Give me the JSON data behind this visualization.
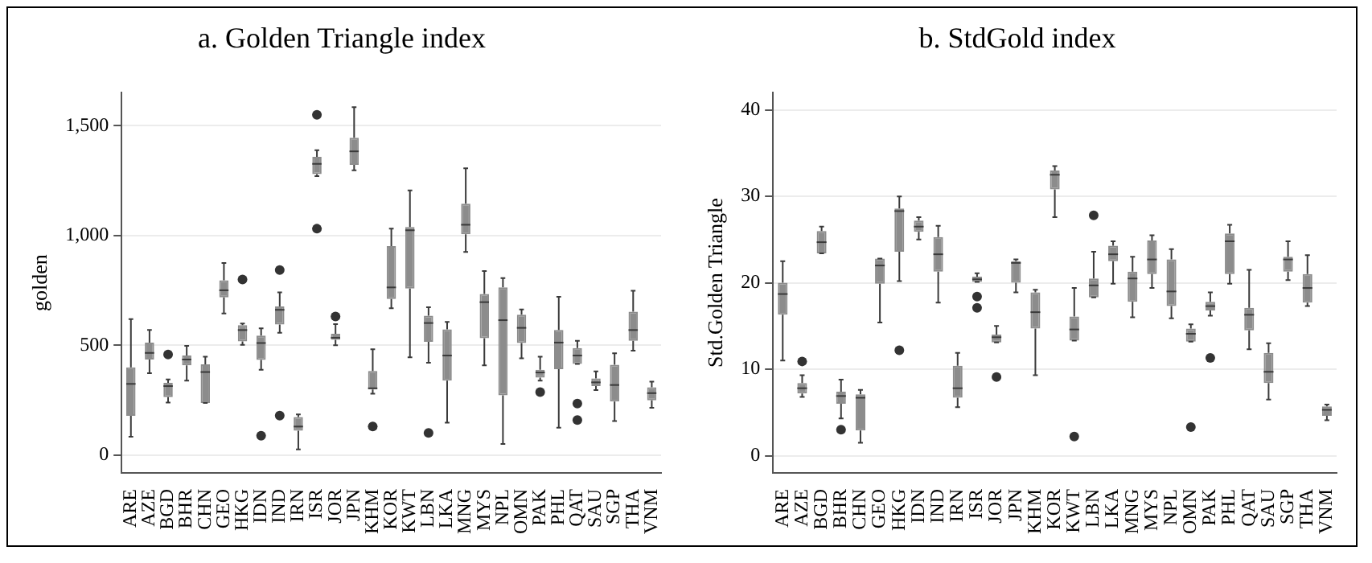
{
  "chart_data": [
    {
      "type": "box",
      "title": "a. Golden Triangle index",
      "ylabel": "golden",
      "color": "#8c8c8c",
      "grid": "y",
      "categories": [
        "ARE",
        "AZE",
        "BGD",
        "BHR",
        "CHN",
        "GEO",
        "HKG",
        "IDN",
        "IND",
        "IRN",
        "ISR",
        "JOR",
        "JPN",
        "KHM",
        "KOR",
        "KWT",
        "LBN",
        "LKA",
        "MNG",
        "MYS",
        "NPL",
        "OMN",
        "PAK",
        "PHL",
        "QAT",
        "SAU",
        "SGP",
        "THA",
        "VNM"
      ],
      "ylim": [
        -80,
        1650
      ],
      "yticks": [
        0,
        500,
        {
          "value": 1000,
          "label": "1,000"
        },
        {
          "value": 1500,
          "label": "1,500"
        }
      ],
      "boxes": [
        {
          "low": 85,
          "q1": 180,
          "median": 325,
          "q3": 400,
          "high": 620
        },
        {
          "low": 374,
          "q1": 436,
          "median": 466,
          "q3": 513,
          "high": 570
        },
        {
          "low": 240,
          "q1": 265,
          "median": 315,
          "q3": 330,
          "high": 345,
          "outliers": [
            459
          ]
        },
        {
          "low": 340,
          "q1": 409,
          "median": 436,
          "q3": 454,
          "high": 498
        },
        {
          "low": 238,
          "q1": 238,
          "median": 379,
          "q3": 414,
          "high": 449
        },
        {
          "low": 645,
          "q1": 719,
          "median": 751,
          "q3": 796,
          "high": 875
        },
        {
          "low": 503,
          "q1": 518,
          "median": 570,
          "q3": 592,
          "high": 600,
          "outliers": [
            800
          ]
        },
        {
          "low": 389,
          "q1": 434,
          "median": 511,
          "q3": 545,
          "high": 578,
          "outliers": [
            89
          ]
        },
        {
          "low": 558,
          "q1": 595,
          "median": 662,
          "q3": 677,
          "high": 741,
          "outliers": [
            843,
            181
          ]
        },
        {
          "low": 27,
          "q1": 112,
          "median": 131,
          "q3": 174,
          "high": 186
        },
        {
          "low": 1270,
          "q1": 1279,
          "median": 1326,
          "q3": 1358,
          "high": 1388,
          "outliers": [
            1549,
            1031
          ]
        },
        {
          "low": 501,
          "q1": 526,
          "median": 535,
          "q3": 553,
          "high": 597,
          "outliers": [
            632
          ]
        },
        {
          "low": 1297,
          "q1": 1321,
          "median": 1383,
          "q3": 1445,
          "high": 1584
        },
        {
          "low": 280,
          "q1": 300,
          "median": 305,
          "q3": 384,
          "high": 483,
          "outliers": [
            131
          ]
        },
        {
          "low": 669,
          "q1": 711,
          "median": 764,
          "q3": 952,
          "high": 1031
        },
        {
          "low": 446,
          "q1": 759,
          "median": 1024,
          "q3": 1039,
          "high": 1205
        },
        {
          "low": 421,
          "q1": 516,
          "median": 602,
          "q3": 635,
          "high": 674,
          "outliers": [
            102
          ]
        },
        {
          "low": 149,
          "q1": 340,
          "median": 454,
          "q3": 573,
          "high": 607
        },
        {
          "low": 925,
          "q1": 1006,
          "median": 1049,
          "q3": 1145,
          "high": 1306
        },
        {
          "low": 409,
          "q1": 533,
          "median": 697,
          "q3": 734,
          "high": 838
        },
        {
          "low": 52,
          "q1": 273,
          "median": 615,
          "q3": 764,
          "high": 806
        },
        {
          "low": 441,
          "q1": 511,
          "median": 580,
          "q3": 640,
          "high": 664
        },
        {
          "low": 340,
          "q1": 354,
          "median": 377,
          "q3": 389,
          "high": 449,
          "outliers": [
            288
          ]
        },
        {
          "low": 126,
          "q1": 392,
          "median": 513,
          "q3": 570,
          "high": 721
        },
        {
          "low": 416,
          "q1": 416,
          "median": 454,
          "q3": 488,
          "high": 521,
          "outliers": [
            236,
            161
          ]
        },
        {
          "low": 297,
          "q1": 315,
          "median": 332,
          "q3": 350,
          "high": 382
        },
        {
          "low": 156,
          "q1": 245,
          "median": 320,
          "q3": 412,
          "high": 464
        },
        {
          "low": 476,
          "q1": 521,
          "median": 570,
          "q3": 654,
          "high": 749
        },
        {
          "low": 216,
          "q1": 250,
          "median": 283,
          "q3": 310,
          "high": 335
        }
      ]
    },
    {
      "type": "box",
      "title": "b. StdGold index",
      "ylabel": "Std.Golden Triangle",
      "color": "#8c8c8c",
      "grid": "y",
      "categories": [
        "ARE",
        "AZE",
        "BGD",
        "BHR",
        "CHN",
        "GEO",
        "HKG",
        "IDN",
        "IND",
        "IRN",
        "ISR",
        "JOR",
        "JPN",
        "KHM",
        "KOR",
        "KWT",
        "LBN",
        "LKA",
        "MNG",
        "MYS",
        "NPL",
        "OMN",
        "PAK",
        "PHL",
        "QAT",
        "SAU",
        "SGP",
        "THA",
        "VNM"
      ],
      "ylim": [
        -2,
        42
      ],
      "yticks": [
        0,
        10,
        20,
        30,
        40
      ],
      "boxes": [
        {
          "low": 11.0,
          "q1": 16.3,
          "median": 18.7,
          "q3": 20.0,
          "high": 22.5
        },
        {
          "low": 6.8,
          "q1": 7.2,
          "median": 7.8,
          "q3": 8.4,
          "high": 9.3,
          "outliers": [
            10.9
          ]
        },
        {
          "low": 23.4,
          "q1": 23.4,
          "median": 24.7,
          "q3": 26.0,
          "high": 26.5
        },
        {
          "low": 4.3,
          "q1": 6.0,
          "median": 6.9,
          "q3": 7.4,
          "high": 8.8,
          "outliers": [
            3.0
          ]
        },
        {
          "low": 1.5,
          "q1": 2.9,
          "median": 6.7,
          "q3": 7.1,
          "high": 7.6
        },
        {
          "low": 15.4,
          "q1": 19.9,
          "median": 22.0,
          "q3": 22.8,
          "high": 22.8
        },
        {
          "low": 20.2,
          "q1": 23.6,
          "median": 28.3,
          "q3": 28.6,
          "high": 30.0,
          "outliers": [
            12.2
          ]
        },
        {
          "low": 25.0,
          "q1": 25.9,
          "median": 26.5,
          "q3": 27.2,
          "high": 27.6
        },
        {
          "low": 17.7,
          "q1": 21.3,
          "median": 23.3,
          "q3": 25.3,
          "high": 26.6
        },
        {
          "low": 5.6,
          "q1": 6.7,
          "median": 7.8,
          "q3": 10.4,
          "high": 11.9
        },
        {
          "low": 20.1,
          "q1": 20.1,
          "median": 20.4,
          "q3": 20.7,
          "high": 21.1,
          "outliers": [
            18.4,
            17.1
          ]
        },
        {
          "low": 13.1,
          "q1": 13.1,
          "median": 13.7,
          "q3": 14.0,
          "high": 15.0,
          "outliers": [
            9.1
          ]
        },
        {
          "low": 18.9,
          "q1": 20.0,
          "median": 22.3,
          "q3": 22.5,
          "high": 22.7
        },
        {
          "low": 9.3,
          "q1": 14.7,
          "median": 16.6,
          "q3": 18.9,
          "high": 19.2
        },
        {
          "low": 27.6,
          "q1": 30.8,
          "median": 32.5,
          "q3": 33.0,
          "high": 33.5
        },
        {
          "low": 13.3,
          "q1": 13.3,
          "median": 14.6,
          "q3": 16.1,
          "high": 19.4,
          "outliers": [
            2.2
          ]
        },
        {
          "low": 18.3,
          "q1": 18.3,
          "median": 19.7,
          "q3": 20.5,
          "high": 23.6,
          "outliers": [
            27.8
          ]
        },
        {
          "low": 19.9,
          "q1": 22.5,
          "median": 23.3,
          "q3": 24.3,
          "high": 24.8
        },
        {
          "low": 16.0,
          "q1": 17.8,
          "median": 20.5,
          "q3": 21.3,
          "high": 23.0
        },
        {
          "low": 19.4,
          "q1": 21.0,
          "median": 22.7,
          "q3": 24.9,
          "high": 25.5
        },
        {
          "low": 15.9,
          "q1": 17.3,
          "median": 19.0,
          "q3": 22.7,
          "high": 23.9
        },
        {
          "low": 13.2,
          "q1": 13.2,
          "median": 14.1,
          "q3": 14.7,
          "high": 15.2,
          "outliers": [
            3.3
          ]
        },
        {
          "low": 16.2,
          "q1": 16.8,
          "median": 17.3,
          "q3": 17.8,
          "high": 18.9,
          "outliers": [
            11.3
          ]
        },
        {
          "low": 19.9,
          "q1": 21.0,
          "median": 24.8,
          "q3": 25.7,
          "high": 26.7
        },
        {
          "low": 12.3,
          "q1": 14.5,
          "median": 16.3,
          "q3": 17.1,
          "high": 21.5
        },
        {
          "low": 6.5,
          "q1": 8.4,
          "median": 9.7,
          "q3": 11.9,
          "high": 13.0
        },
        {
          "low": 20.3,
          "q1": 21.3,
          "median": 22.7,
          "q3": 23.0,
          "high": 24.8
        },
        {
          "low": 17.3,
          "q1": 17.7,
          "median": 19.4,
          "q3": 21.0,
          "high": 23.2
        },
        {
          "low": 4.1,
          "q1": 4.6,
          "median": 5.3,
          "q3": 5.7,
          "high": 5.9
        }
      ]
    }
  ]
}
